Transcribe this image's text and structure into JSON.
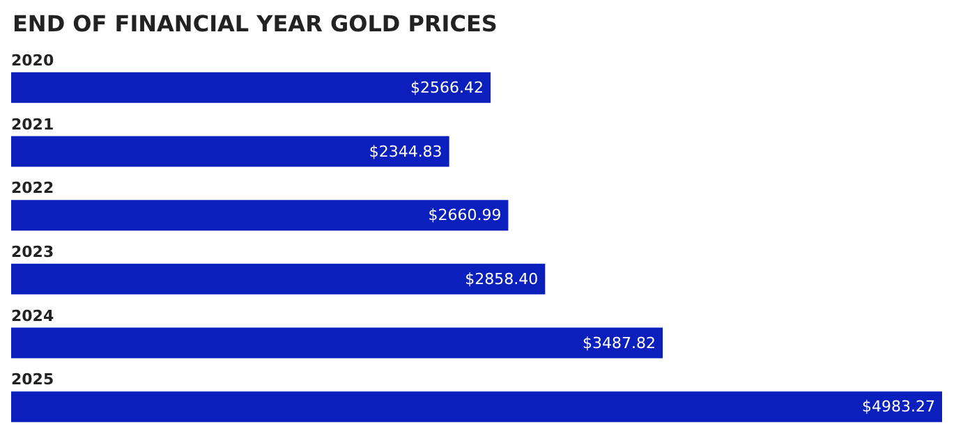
{
  "chart_data": {
    "type": "bar",
    "orientation": "horizontal",
    "title": "END OF FINANCIAL YEAR GOLD PRICES",
    "categories": [
      "2020",
      "2021",
      "2022",
      "2023",
      "2024",
      "2025"
    ],
    "values": [
      2566.42,
      2344.83,
      2660.99,
      2858.4,
      3487.82,
      4983.27
    ],
    "value_labels": [
      "$2566.42",
      "$2344.83",
      "$2660.99",
      "$2858.40",
      "$3487.82",
      "$4983.27"
    ],
    "color": "#0b1fbd"
  }
}
